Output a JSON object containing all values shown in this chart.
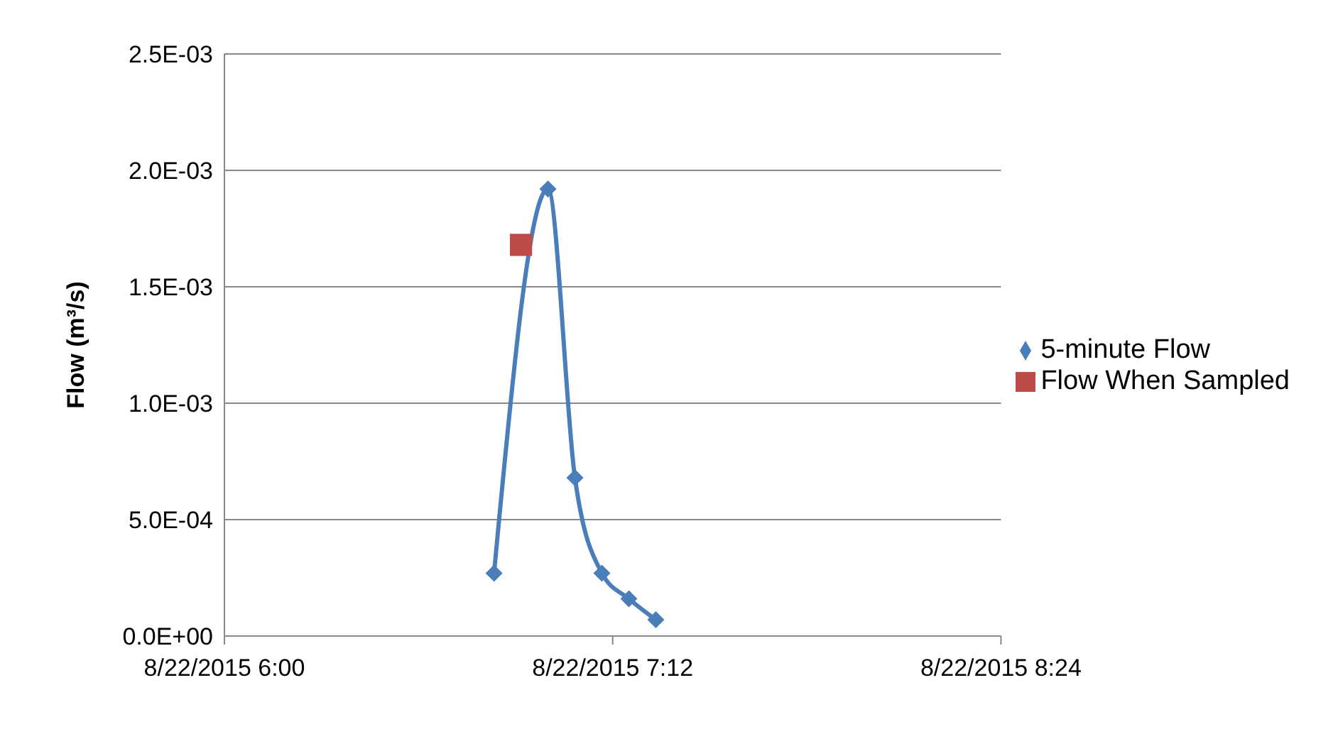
{
  "chart_data": {
    "type": "line",
    "ylabel": "Flow (m³/s)",
    "xlim": [
      "2015-08-22T06:00",
      "2015-08-22T08:24"
    ],
    "xticks": [
      {
        "value": "2015-08-22T06:00",
        "label": "8/22/2015 6:00"
      },
      {
        "value": "2015-08-22T07:12",
        "label": "8/22/2015 7:12"
      },
      {
        "value": "2015-08-22T08:24",
        "label": "8/22/2015 8:24"
      }
    ],
    "ylim": [
      0,
      0.0025
    ],
    "yticks": [
      {
        "value": 0,
        "label": "0.0E+00"
      },
      {
        "value": 0.0005,
        "label": "5.0E-04"
      },
      {
        "value": 0.001,
        "label": "1.0E-03"
      },
      {
        "value": 0.0015,
        "label": "1.5E-03"
      },
      {
        "value": 0.002,
        "label": "2.0E-03"
      },
      {
        "value": 0.0025,
        "label": "2.5E-03"
      }
    ],
    "grid": "y",
    "legend": "right",
    "series": [
      {
        "name": "5-minute Flow",
        "color": "#4a7ebb",
        "marker": "diamond",
        "x": [
          "2015-08-22T06:50",
          "2015-08-22T07:00",
          "2015-08-22T07:05",
          "2015-08-22T07:10",
          "2015-08-22T07:15",
          "2015-08-22T07:20"
        ],
        "values": [
          0.00027,
          0.00192,
          0.00068,
          0.00027,
          0.00016,
          7e-05
        ]
      },
      {
        "name": "Flow When Sampled",
        "type": "scatter",
        "color": "#be4b48",
        "marker": "square",
        "x": [
          "2015-08-22T06:55"
        ],
        "values": [
          0.00168
        ]
      }
    ]
  }
}
